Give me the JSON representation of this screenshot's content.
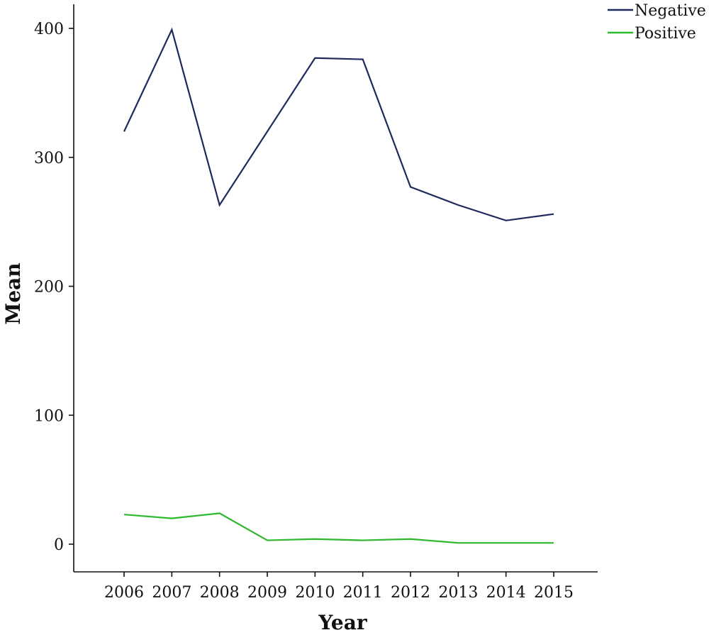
{
  "chart_data": {
    "type": "line",
    "xlabel": "Year",
    "ylabel": "Mean",
    "x": [
      "2006",
      "2007",
      "2008",
      "2009",
      "2010",
      "2011",
      "2012",
      "2013",
      "2014",
      "2015"
    ],
    "y_ticks": [
      "0",
      "100",
      "200",
      "300",
      "400"
    ],
    "ylim": [
      -22,
      420
    ],
    "grid": false,
    "legend_position": "top-right",
    "series": [
      {
        "name": "Negative",
        "color": "#1f2a5c",
        "values": [
          320,
          399,
          263,
          320,
          377,
          376,
          277,
          263,
          251,
          256
        ]
      },
      {
        "name": "Positive",
        "color": "#2db82d",
        "values": [
          23,
          20,
          24,
          3,
          4,
          3,
          4,
          1,
          1,
          1
        ]
      }
    ]
  }
}
